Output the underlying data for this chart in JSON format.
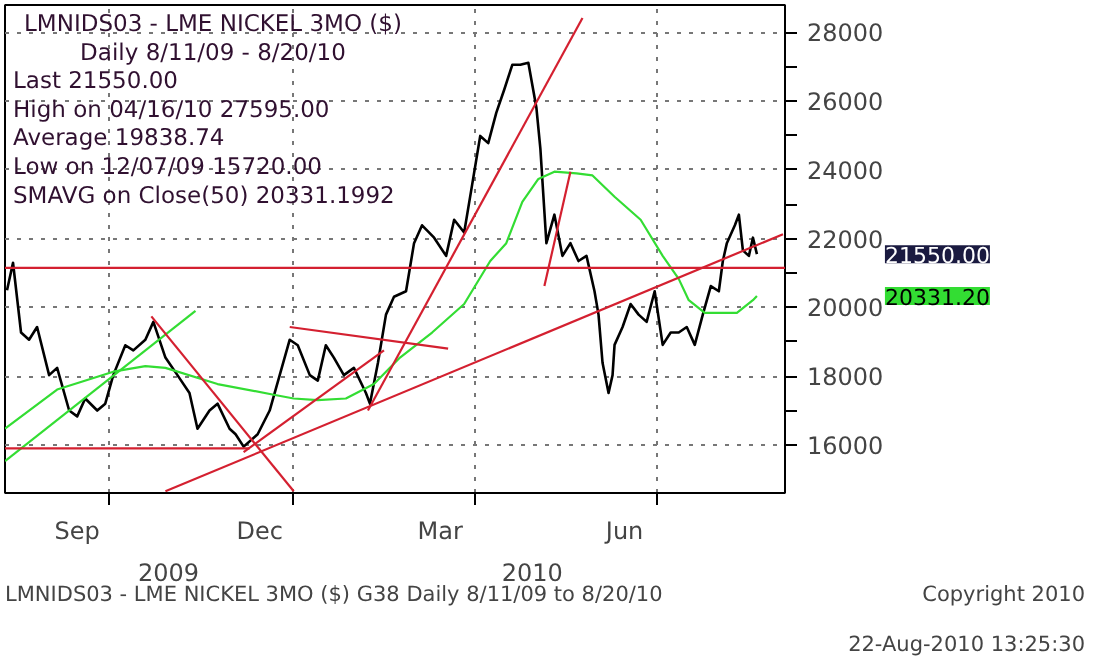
{
  "chart_data": {
    "type": "line",
    "title": "LMNIDS03 - LME NICKEL 3MO ($)",
    "subtitle": "Daily 8/11/09 - 8/20/10",
    "grid": true,
    "line_style": "solid",
    "marker": "none",
    "xlim": [
      "2009-08-10",
      "2010-09-03"
    ],
    "xticks": [
      {
        "value": "2009-09-15",
        "label": "Sep"
      },
      {
        "value": "2009-10-01",
        "label": null
      },
      {
        "value": "2009-12-15",
        "label": "Dec"
      },
      {
        "value": "2010-01-01",
        "label": null
      },
      {
        "value": "2010-03-15",
        "label": "Mar"
      },
      {
        "value": "2010-04-01",
        "label": null
      },
      {
        "value": "2010-06-15",
        "label": "Jun"
      },
      {
        "value": "2010-07-01",
        "label": null
      }
    ],
    "ylim": [
      14600,
      28800
    ],
    "yticks": [
      16000,
      {
        "value": 17000,
        "label": null
      },
      18000,
      {
        "value": 19000,
        "label": null
      },
      20000,
      {
        "value": 21000,
        "label": null
      },
      22000,
      {
        "value": 23000,
        "label": null
      },
      24000,
      {
        "value": 25000,
        "label": null
      },
      26000,
      {
        "value": 27000,
        "label": null
      },
      28000
    ],
    "ref_lines": [
      {
        "axis": "y",
        "value": 21150,
        "label": null,
        "color": "#d42030"
      }
    ],
    "series": [
      {
        "color": "#000000",
        "x": [
          "2009-08-11",
          "2009-08-14",
          "2009-08-18",
          "2009-08-22",
          "2009-08-26",
          "2009-09-01",
          "2009-09-05",
          "2009-09-11",
          "2009-09-15",
          "2009-09-19",
          "2009-09-25",
          "2009-09-29",
          "2009-10-03",
          "2009-10-09",
          "2009-10-13",
          "2009-10-19",
          "2009-10-23",
          "2009-10-29",
          "2009-11-04",
          "2009-11-10",
          "2009-11-14",
          "2009-11-20",
          "2009-11-24",
          "2009-11-30",
          "2009-12-03",
          "2009-12-07",
          "2009-12-14",
          "2009-12-20",
          "2009-12-25",
          "2009-12-30",
          "2010-01-03",
          "2010-01-09",
          "2010-01-13",
          "2010-01-17",
          "2010-01-21",
          "2010-01-26",
          "2010-01-31",
          "2010-02-06",
          "2010-02-08",
          "2010-02-12",
          "2010-02-16",
          "2010-02-20",
          "2010-02-26",
          "2010-03-02",
          "2010-03-06",
          "2010-03-12",
          "2010-03-18",
          "2010-03-22",
          "2010-03-27",
          "2010-03-31",
          "2010-04-04",
          "2010-04-08",
          "2010-04-12",
          "2010-04-16",
          "2010-04-20",
          "2010-04-24",
          "2010-04-28",
          "2010-05-02",
          "2010-05-04",
          "2010-05-07",
          "2010-05-11",
          "2010-05-15",
          "2010-05-19",
          "2010-05-23",
          "2010-05-27",
          "2010-05-31",
          "2010-06-02",
          "2010-06-04",
          "2010-06-07",
          "2010-06-09",
          "2010-06-10",
          "2010-06-14",
          "2010-06-18",
          "2010-06-22",
          "2010-06-26",
          "2010-06-30",
          "2010-07-04",
          "2010-07-08",
          "2010-07-12",
          "2010-07-16",
          "2010-07-20",
          "2010-07-24",
          "2010-07-28",
          "2010-08-01",
          "2010-08-03",
          "2010-08-05",
          "2010-08-09",
          "2010-08-11",
          "2010-08-13",
          "2010-08-16",
          "2010-08-18",
          "2010-08-20"
        ],
        "values": [
          20500,
          21300,
          19270,
          19060,
          19430,
          18030,
          18240,
          17000,
          16830,
          17350,
          17000,
          17200,
          18030,
          18900,
          18750,
          19060,
          19580,
          18540,
          18030,
          17510,
          16470,
          17000,
          17200,
          16470,
          16310,
          15950,
          16310,
          17000,
          18030,
          19060,
          18900,
          18030,
          17870,
          18900,
          18540,
          18030,
          18240,
          17510,
          17200,
          18390,
          19790,
          20310,
          20470,
          21870,
          22390,
          22030,
          21500,
          22550,
          22180,
          23580,
          24990,
          24780,
          25660,
          26340,
          27060,
          27060,
          27120,
          25820,
          24620,
          21870,
          22700,
          21500,
          21870,
          21350,
          21500,
          20470,
          19790,
          18390,
          17510,
          18030,
          18910,
          19430,
          20100,
          19790,
          19580,
          20470,
          18910,
          19270,
          19270,
          19430,
          18910,
          19790,
          20620,
          20470,
          21350,
          21870,
          22390,
          22700,
          21660,
          21500,
          22030,
          21550
        ]
      },
      {
        "color": "#33dd33",
        "x": [
          "2009-08-10",
          "2009-09-05",
          "2009-10-03",
          "2009-10-19",
          "2009-10-29",
          "2009-11-24",
          "2009-12-22",
          "2010-01-01",
          "2010-01-13",
          "2010-01-27",
          "2010-02-10",
          "2010-02-23",
          "2010-03-11",
          "2010-03-27",
          "2010-04-09",
          "2010-04-17",
          "2010-04-25",
          "2010-05-03",
          "2010-05-11",
          "2010-05-22",
          "2010-05-30",
          "2010-06-10",
          "2010-06-23",
          "2010-07-04",
          "2010-07-12",
          "2010-07-17",
          "2010-07-25",
          "2010-08-10",
          "2010-08-18",
          "2010-08-20"
        ],
        "values": [
          16470,
          17610,
          18130,
          18290,
          18240,
          17770,
          17460,
          17350,
          17300,
          17350,
          17770,
          18540,
          19270,
          20100,
          21350,
          21870,
          23070,
          23740,
          23950,
          23900,
          23840,
          23220,
          22550,
          21500,
          20830,
          20210,
          19840,
          19840,
          20210,
          20331
        ]
      },
      {
        "color": "#33dd33",
        "x": [
          "2009-08-10",
          "2009-11-13"
        ],
        "values": [
          15530,
          19900
        ]
      },
      {
        "color": "#d42030",
        "x": [
          "2009-08-10",
          "2009-12-10"
        ],
        "values": [
          15900,
          15900
        ]
      },
      {
        "color": "#d42030",
        "x": [
          "2009-10-22",
          "2010-01-01"
        ],
        "values": [
          19740,
          14650
        ]
      },
      {
        "color": "#d42030",
        "x": [
          "2009-10-29",
          "2010-09-02"
        ],
        "values": [
          14650,
          22130
        ]
      },
      {
        "color": "#d42030",
        "x": [
          "2009-12-07",
          "2010-02-15"
        ],
        "values": [
          15790,
          18750
        ]
      },
      {
        "color": "#d42030",
        "x": [
          "2010-02-07",
          "2010-05-25"
        ],
        "values": [
          17000,
          28420
        ]
      },
      {
        "color": "#d42030",
        "x": [
          "2009-12-30",
          "2010-03-19"
        ],
        "values": [
          19430,
          18800
        ]
      },
      {
        "color": "#d42030",
        "x": [
          "2010-05-06",
          "2010-05-19"
        ],
        "values": [
          20620,
          23950
        ]
      }
    ],
    "annotations": [
      "Last  21550.00",
      "High on 04/16/10  27595.00",
      "Average  19838.74",
      "Low on 12/07/09  15720.00",
      "SMAVG on Close(50)  20331.1992",
      "LMNIDS03 - LME NICKEL  3MO ($)     G38  Daily  8/11/09 to 8/20/10",
      "Copyright 2010",
      "22-Aug-2010 13:25:30",
      "2009",
      "2010",
      "21550.00",
      "20331.20"
    ]
  }
}
